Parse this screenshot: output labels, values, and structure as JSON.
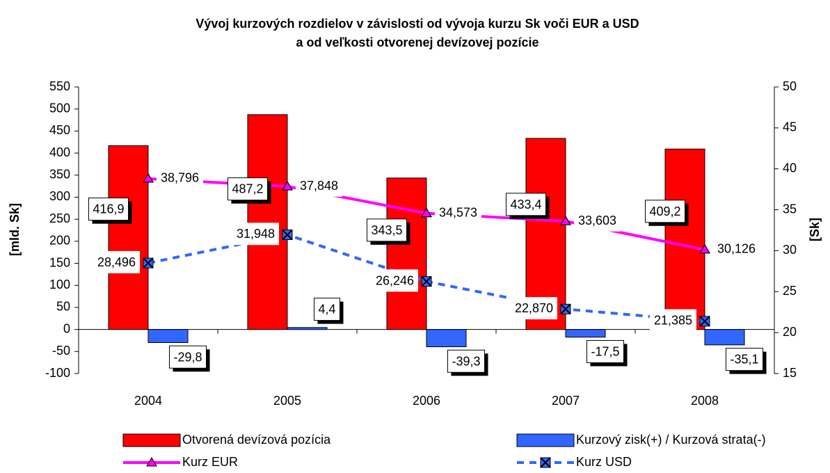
{
  "chart_data": {
    "type": "bar",
    "title": [
      "Vývoj kurzových rozdielov v závislosti od vývoja kurzu Sk voči EUR a USD",
      "a od veľkosti otvorenej devízovej pozície"
    ],
    "ylabel": "[mld. Sk]",
    "y2label": "[Sk]",
    "categories": [
      "2004",
      "2005",
      "2006",
      "2007",
      "2008"
    ],
    "series": [
      {
        "name": "Otvorená devízová pozícia",
        "type": "bar",
        "color": "#ff0000",
        "values": [
          416.9,
          487.2,
          343.5,
          433.4,
          409.2
        ],
        "value_labels": [
          "416,9",
          "487,2",
          "343,5",
          "433,4",
          "409,2"
        ]
      },
      {
        "name": "Kurzový zisk(+) / Kurzová strata(-)",
        "type": "bar",
        "color": "#3366ff",
        "values": [
          -29.8,
          4.4,
          -39.3,
          -17.5,
          -35.1
        ],
        "value_labels": [
          "-29,8",
          "4,4",
          "-39,3",
          "-17,5",
          "-35,1"
        ]
      },
      {
        "name": "Kurz EUR",
        "type": "line",
        "axis": "y2",
        "color": "#ff00ff",
        "marker": "triangle",
        "values": [
          38.796,
          37.848,
          34.573,
          33.603,
          30.126
        ],
        "value_labels": [
          "38,796",
          "37,848",
          "34,573",
          "33,603",
          "30,126"
        ]
      },
      {
        "name": "Kurz USD",
        "type": "line",
        "axis": "y2",
        "color": "#3366ff",
        "dashed": true,
        "marker": "xsquare",
        "values": [
          28.496,
          31.948,
          26.246,
          22.87,
          21.385
        ],
        "value_labels": [
          "28,496",
          "31,948",
          "26,246",
          "22,870",
          "21,385"
        ]
      }
    ],
    "ylim": [
      -100,
      550
    ],
    "yticks": [
      -100,
      -50,
      0,
      50,
      100,
      150,
      200,
      250,
      300,
      350,
      400,
      450,
      500,
      550
    ],
    "y2lim": [
      15,
      50
    ],
    "y2ticks": [
      15,
      20,
      25,
      30,
      35,
      40,
      45,
      50
    ],
    "legend": "bottom"
  }
}
